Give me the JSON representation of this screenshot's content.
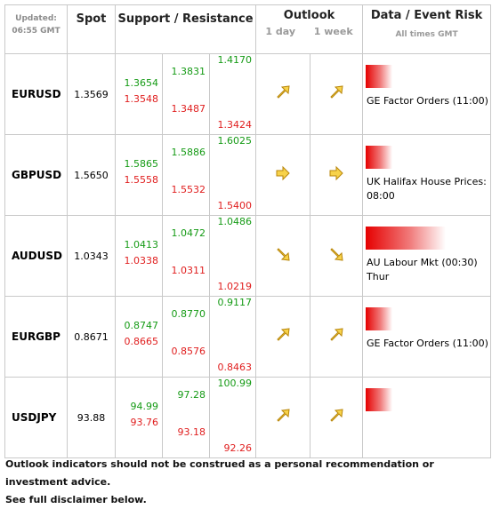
{
  "header": {
    "updated_label": "Updated:",
    "updated_time": "06:55 GMT",
    "spot": "Spot",
    "support_resistance": "Support / Resistance",
    "outlook": "Outlook",
    "outlook_1day": "1 day",
    "outlook_1week": "1 week",
    "event_risk": "Data / Event Risk",
    "all_times": "All times GMT"
  },
  "rows": [
    {
      "pair": "EURUSD",
      "spot": "1.3569",
      "c1": {
        "g": "1.3654",
        "r": "1.3548"
      },
      "c2": {
        "g": "1.3831",
        "r": "1.3487"
      },
      "c3": {
        "g": "1.4170",
        "r": "1.3424"
      },
      "day": "up-right",
      "week": "up-right",
      "risk": 0.25,
      "event": "GE Factor Orders (11:00)"
    },
    {
      "pair": "GBPUSD",
      "spot": "1.5650",
      "c1": {
        "g": "1.5865",
        "r": "1.5558"
      },
      "c2": {
        "g": "1.5886",
        "r": "1.5532"
      },
      "c3": {
        "g": "1.6025",
        "r": "1.5400"
      },
      "day": "right",
      "week": "right",
      "risk": 0.25,
      "event": "UK Halifax House Prices: 08:00"
    },
    {
      "pair": "AUDUSD",
      "spot": "1.0343",
      "c1": {
        "g": "1.0413",
        "r": "1.0338"
      },
      "c2": {
        "g": "1.0472",
        "r": "1.0311"
      },
      "c3": {
        "g": "1.0486",
        "r": "1.0219"
      },
      "day": "down-right",
      "week": "down-right",
      "risk": 0.75,
      "event": "AU Labour Mkt (00:30) Thur"
    },
    {
      "pair": "EURGBP",
      "spot": "0.8671",
      "c1": {
        "g": "0.8747",
        "r": "0.8665"
      },
      "c2": {
        "g": "0.8770",
        "r": "0.8576"
      },
      "c3": {
        "g": "0.9117",
        "r": "0.8463"
      },
      "day": "up-right",
      "week": "up-right",
      "risk": 0.25,
      "event": "GE Factor Orders (11:00)"
    },
    {
      "pair": "USDJPY",
      "spot": "93.88",
      "c1": {
        "g": "94.99",
        "r": "93.76"
      },
      "c2": {
        "g": "97.28",
        "r": "93.18"
      },
      "c3": {
        "g": "100.99",
        "r": "92.26"
      },
      "day": "up-right",
      "week": "up-right",
      "risk": 0.25,
      "event": ""
    }
  ],
  "footer": {
    "line1": "Outlook indicators should not be construed as a personal recommendation or investment advice.",
    "line2": "See full disclaimer below."
  }
}
